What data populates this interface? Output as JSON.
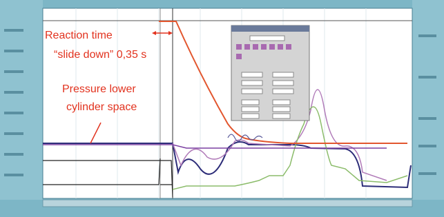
{
  "annotations": {
    "reaction_time": "Reaction time",
    "slide_down": "“slide down” 0,35 s",
    "pressure_line1": "Pressure lower",
    "pressure_line2": "cylinder space"
  }
}
